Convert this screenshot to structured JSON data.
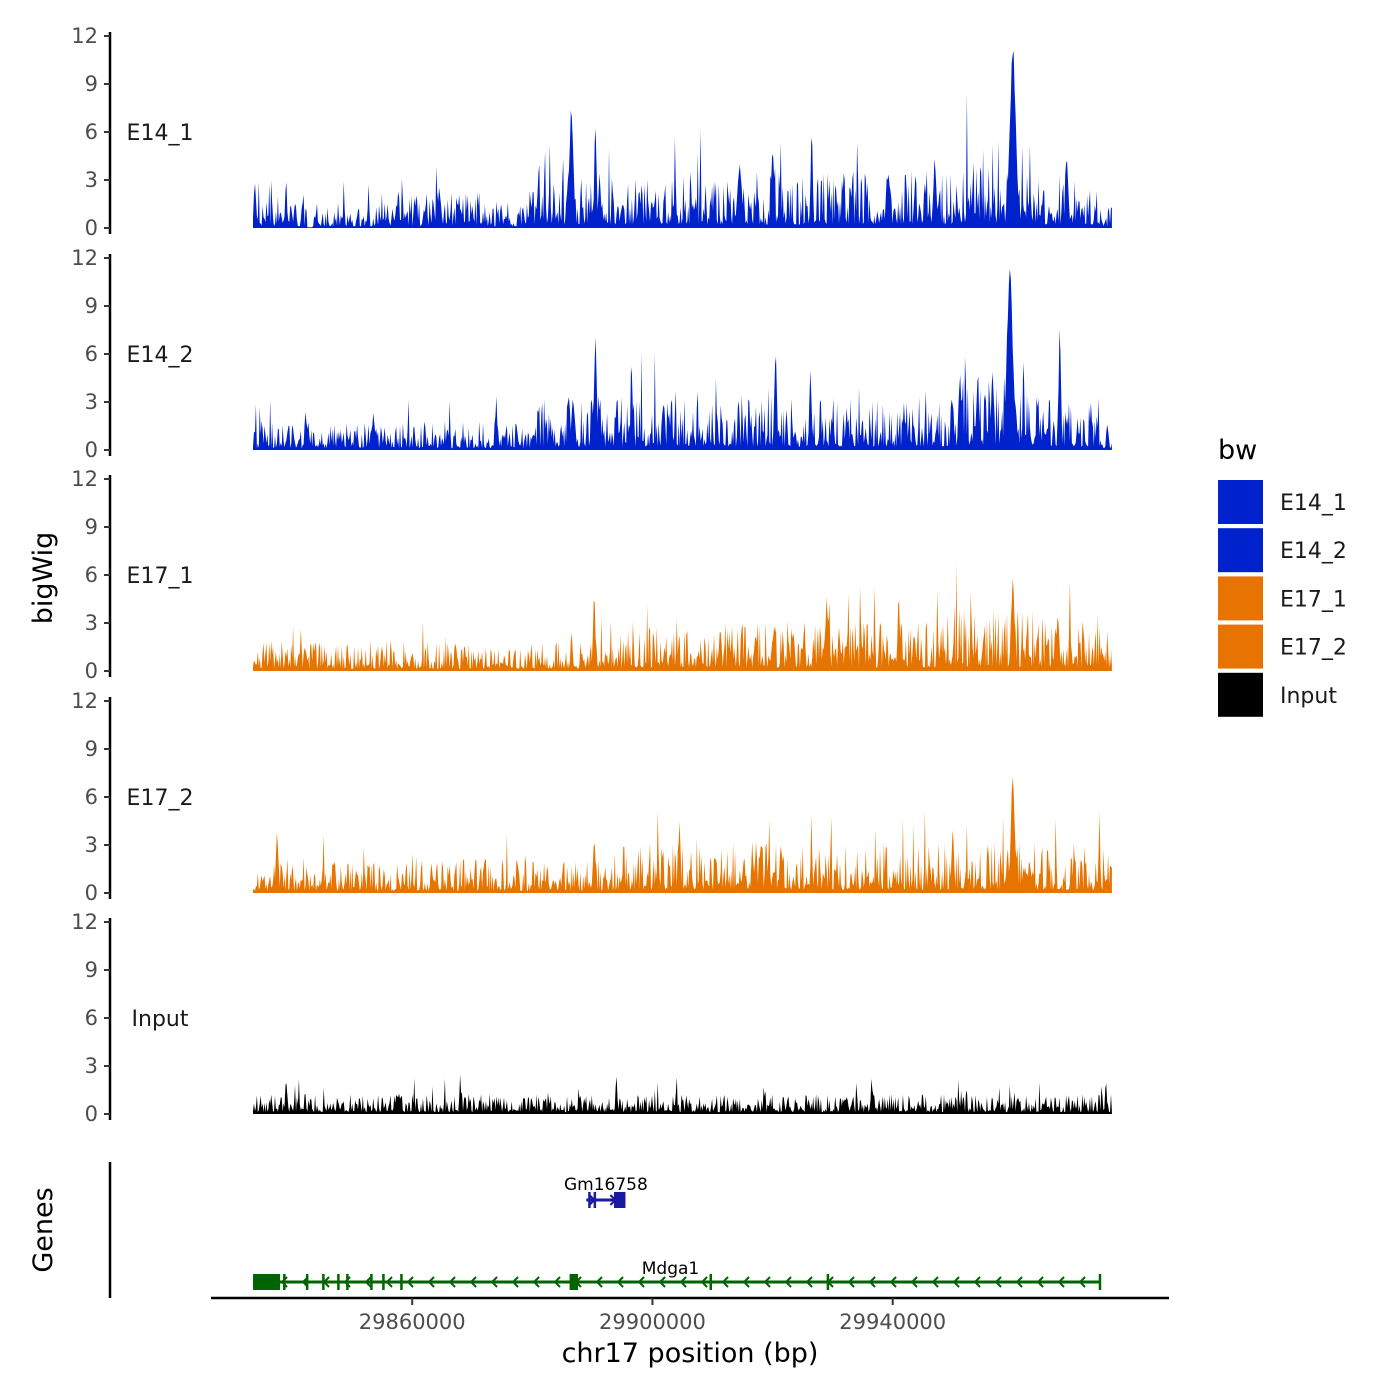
{
  "chart_data": {
    "type": "area",
    "subtype": "genome-browser-coverage-tracks",
    "xlabel": "chr17 position (bp)",
    "ylabel": "bigWig",
    "genes_label": "Genes",
    "x_range": [
      29826500,
      29986000
    ],
    "x_ticks": [
      29860000,
      29900000,
      29940000
    ],
    "x_tick_labels": [
      "29860000",
      "29900000",
      "29940000"
    ],
    "coverage_range": [
      29833500,
      29976500
    ],
    "y_range": [
      0,
      12
    ],
    "y_ticks": [
      0,
      3,
      6,
      9,
      12
    ],
    "y_tick_labels": [
      "0",
      "3",
      "6",
      "9",
      "12"
    ],
    "legend": {
      "title": "bw",
      "entries": [
        {
          "label": "E14_1",
          "color": "#0022CC"
        },
        {
          "label": "E14_2",
          "color": "#0022CC"
        },
        {
          "label": "E17_1",
          "color": "#E87400"
        },
        {
          "label": "E17_2",
          "color": "#E87400"
        },
        {
          "label": "Input",
          "color": "#000000"
        }
      ]
    },
    "tracks": [
      {
        "name": "E14_1",
        "color": "#0022CC",
        "base": 0.7,
        "noise": 1.4,
        "seed": 11,
        "regions": [
          {
            "from": 29842500,
            "to": 29843500,
            "level": 0.05
          },
          {
            "from": 29856000,
            "to": 29872000,
            "mult": 1.4
          },
          {
            "from": 29879000,
            "to": 29975000,
            "mult": 2.1
          },
          {
            "from": 29951000,
            "to": 29964000,
            "mult": 1.5
          }
        ],
        "peaks": [
          {
            "pos": 29833800,
            "height": 3.1,
            "width": 250
          },
          {
            "pos": 29839000,
            "height": 3.2,
            "width": 200
          },
          {
            "pos": 29864500,
            "height": 2.6,
            "width": 300
          },
          {
            "pos": 29886500,
            "height": 8.3,
            "width": 450
          },
          {
            "pos": 29890500,
            "height": 7.1,
            "width": 250
          },
          {
            "pos": 29914500,
            "height": 4.2,
            "width": 500
          },
          {
            "pos": 29920000,
            "height": 5.4,
            "width": 300
          },
          {
            "pos": 29926500,
            "height": 6.4,
            "width": 250
          },
          {
            "pos": 29947000,
            "height": 4.8,
            "width": 300
          },
          {
            "pos": 29960000,
            "height": 11.7,
            "width": 700
          },
          {
            "pos": 29969000,
            "height": 4.7,
            "width": 350
          }
        ]
      },
      {
        "name": "E14_2",
        "color": "#0022CC",
        "base": 0.75,
        "noise": 1.4,
        "seed": 23,
        "regions": [
          {
            "from": 29880000,
            "to": 29975000,
            "mult": 1.9
          },
          {
            "from": 29951000,
            "to": 29964000,
            "mult": 1.5
          }
        ],
        "peaks": [
          {
            "pos": 29853500,
            "height": 2.6,
            "width": 200
          },
          {
            "pos": 29874000,
            "height": 3.6,
            "width": 200
          },
          {
            "pos": 29886800,
            "height": 3.4,
            "width": 400
          },
          {
            "pos": 29890500,
            "height": 7.3,
            "width": 300
          },
          {
            "pos": 29896500,
            "height": 6.2,
            "width": 200
          },
          {
            "pos": 29920500,
            "height": 6.7,
            "width": 300
          },
          {
            "pos": 29926300,
            "height": 5.2,
            "width": 250
          },
          {
            "pos": 29950000,
            "height": 3.3,
            "width": 250
          },
          {
            "pos": 29959500,
            "height": 11.5,
            "width": 700
          },
          {
            "pos": 29967800,
            "height": 7.8,
            "width": 250
          },
          {
            "pos": 29973000,
            "height": 3.0,
            "width": 250
          }
        ]
      },
      {
        "name": "E17_1",
        "color": "#E87400",
        "base": 0.9,
        "noise": 1.3,
        "seed": 37,
        "regions": [
          {
            "from": 29895000,
            "to": 29976000,
            "mult": 1.6
          },
          {
            "from": 29950000,
            "to": 29965000,
            "mult": 1.2
          }
        ],
        "peaks": [
          {
            "pos": 29890300,
            "height": 5.4,
            "width": 250
          },
          {
            "pos": 29929000,
            "height": 5.2,
            "width": 250
          },
          {
            "pos": 29941000,
            "height": 5.3,
            "width": 250
          },
          {
            "pos": 29960000,
            "height": 6.0,
            "width": 400
          },
          {
            "pos": 29967500,
            "height": 3.8,
            "width": 300
          }
        ]
      },
      {
        "name": "E17_2",
        "color": "#E87400",
        "base": 0.9,
        "noise": 1.4,
        "seed": 53,
        "regions": [
          {
            "from": 29895000,
            "to": 29976000,
            "mult": 1.5
          }
        ],
        "peaks": [
          {
            "pos": 29837500,
            "height": 4.0,
            "width": 300
          },
          {
            "pos": 29890300,
            "height": 3.4,
            "width": 300
          },
          {
            "pos": 29904500,
            "height": 4.9,
            "width": 250
          },
          {
            "pos": 29950000,
            "height": 4.0,
            "width": 300
          },
          {
            "pos": 29960000,
            "height": 7.5,
            "width": 450
          }
        ]
      },
      {
        "name": "Input",
        "color": "#000000",
        "base": 0.8,
        "noise": 0.9,
        "seed": 71,
        "regions": [],
        "peaks": [
          {
            "pos": 29839000,
            "height": 2.4,
            "width": 200
          },
          {
            "pos": 29868000,
            "height": 2.5,
            "width": 200
          },
          {
            "pos": 29894000,
            "height": 2.6,
            "width": 200
          },
          {
            "pos": 29936500,
            "height": 2.5,
            "width": 200
          },
          {
            "pos": 29975500,
            "height": 2.3,
            "width": 200
          }
        ]
      }
    ],
    "genes": [
      {
        "name": "Gm16758",
        "color": "#1A1AA0",
        "strand": "+",
        "start": 29889000,
        "end": 29895500,
        "exons": [
          {
            "start": 29889300,
            "end": 29889500
          },
          {
            "start": 29890200,
            "end": 29890400
          },
          {
            "start": 29893600,
            "end": 29895500
          }
        ]
      },
      {
        "name": "Mdga1",
        "color": "#006400",
        "strand": "-",
        "start": 29833500,
        "end": 29974500,
        "exons": [
          {
            "start": 29833500,
            "end": 29838000
          },
          {
            "start": 29838500,
            "end": 29838800
          },
          {
            "start": 29842300,
            "end": 29842600
          },
          {
            "start": 29845000,
            "end": 29845300
          },
          {
            "start": 29847500,
            "end": 29847800
          },
          {
            "start": 29849000,
            "end": 29849300
          },
          {
            "start": 29853000,
            "end": 29853300
          },
          {
            "start": 29855000,
            "end": 29855300
          },
          {
            "start": 29858000,
            "end": 29858300
          },
          {
            "start": 29886200,
            "end": 29887600
          },
          {
            "start": 29909500,
            "end": 29909700
          },
          {
            "start": 29929000,
            "end": 29929200
          },
          {
            "start": 29974300,
            "end": 29974500
          }
        ]
      }
    ]
  }
}
